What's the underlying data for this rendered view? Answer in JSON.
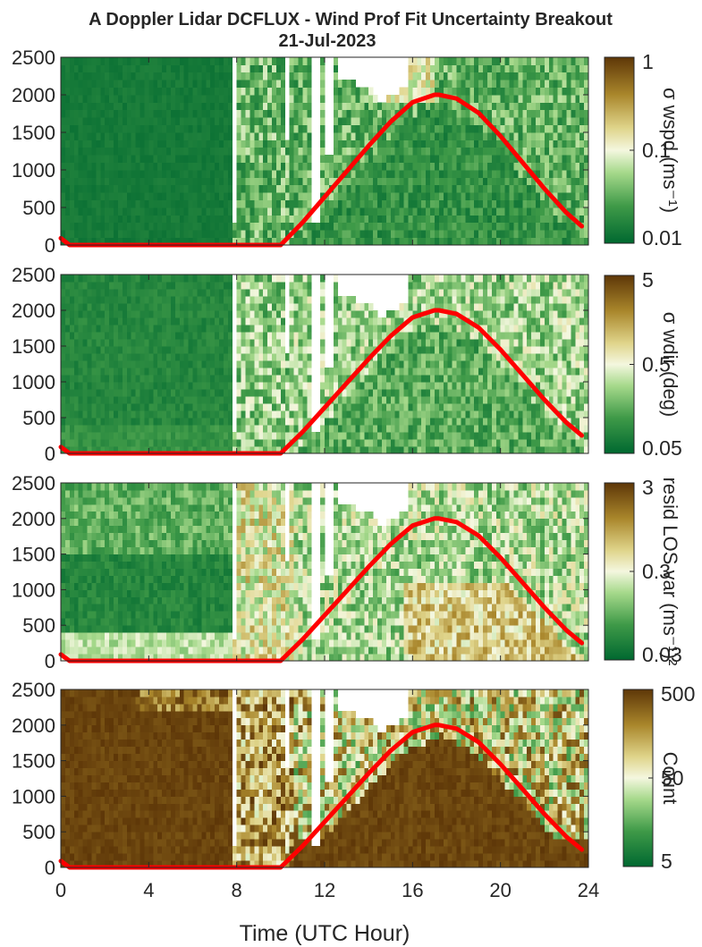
{
  "figure": {
    "title_line1": "A Doppler Lidar DCFLUX - Wind Prof Fit Uncertainty Breakout",
    "title_line2": "21-Jul-2023",
    "xlabel": "Time (UTC Hour)"
  },
  "colors": {
    "sza_line": "#ff0000",
    "colormap_low": "#006830",
    "colormap_mid": "#f4f7df",
    "colormap_high": "#5e3708",
    "no_data": "#ffffff"
  },
  "chart_data": [
    {
      "type": "heatmap",
      "panel": 1,
      "colorbar_label": "σ wspd (ms⁻¹)",
      "colorbar_ticks": [
        "1",
        "0.1",
        "0.01"
      ],
      "scale": "log",
      "yticks": [
        "0",
        "500",
        "1000",
        "1500",
        "2000",
        "2500"
      ],
      "xticks": [
        "0",
        "4",
        "8",
        "12",
        "16",
        "20",
        "24"
      ],
      "xlim": [
        0,
        24
      ],
      "ylim": [
        0,
        2500
      ],
      "series": [
        {
          "type": "line",
          "x": [
            0,
            0.4,
            10,
            11,
            12,
            13,
            14,
            15,
            16,
            17,
            17.2,
            18,
            19,
            20,
            21,
            22,
            23,
            23.7
          ],
          "y": [
            90,
            0,
            0,
            300,
            640,
            980,
            1320,
            1640,
            1900,
            2000,
            2000,
            1950,
            1760,
            1450,
            1100,
            750,
            430,
            250
          ]
        }
      ]
    },
    {
      "type": "heatmap",
      "panel": 2,
      "colorbar_label": "σ wdir (deg)",
      "colorbar_ticks": [
        "5",
        "0.5",
        "0.05"
      ],
      "scale": "log",
      "yticks": [
        "0",
        "500",
        "1000",
        "1500",
        "2000",
        "2500"
      ],
      "xticks": [
        "0",
        "4",
        "8",
        "12",
        "16",
        "20",
        "24"
      ],
      "xlim": [
        0,
        24
      ],
      "ylim": [
        0,
        2500
      ],
      "series": [
        {
          "type": "line",
          "x": [
            0,
            0.4,
            10,
            11,
            12,
            13,
            14,
            15,
            16,
            17,
            17.2,
            18,
            19,
            20,
            21,
            22,
            23,
            23.7
          ],
          "y": [
            90,
            0,
            0,
            300,
            640,
            980,
            1320,
            1640,
            1900,
            2000,
            2000,
            1950,
            1760,
            1450,
            1100,
            750,
            430,
            250
          ]
        }
      ]
    },
    {
      "type": "heatmap",
      "panel": 3,
      "colorbar_label": "resid LOS var (ms⁻¹)²",
      "colorbar_ticks": [
        "3",
        "0.3",
        "0.03"
      ],
      "scale": "log",
      "yticks": [
        "0",
        "500",
        "1000",
        "1500",
        "2000",
        "2500"
      ],
      "xticks": [
        "0",
        "4",
        "8",
        "12",
        "16",
        "20",
        "24"
      ],
      "xlim": [
        0,
        24
      ],
      "ylim": [
        0,
        2500
      ],
      "series": [
        {
          "type": "line",
          "x": [
            0,
            0.4,
            10,
            11,
            12,
            13,
            14,
            15,
            16,
            17,
            17.2,
            18,
            19,
            20,
            21,
            22,
            23,
            23.7
          ],
          "y": [
            90,
            0,
            0,
            300,
            640,
            980,
            1320,
            1640,
            1900,
            2000,
            2000,
            1950,
            1760,
            1450,
            1100,
            750,
            430,
            250
          ]
        }
      ]
    },
    {
      "type": "heatmap",
      "panel": 4,
      "colorbar_label": "Count",
      "colorbar_ticks": [
        "500",
        "50",
        "5"
      ],
      "scale": "log",
      "yticks": [
        "0",
        "500",
        "1000",
        "1500",
        "2000",
        "2500"
      ],
      "xticks": [
        "0",
        "4",
        "8",
        "12",
        "16",
        "20",
        "24"
      ],
      "xlim": [
        0,
        24
      ],
      "ylim": [
        0,
        2500
      ],
      "series": [
        {
          "type": "line",
          "x": [
            0,
            0.4,
            10,
            11,
            12,
            13,
            14,
            15,
            16,
            17,
            17.2,
            18,
            19,
            20,
            21,
            22,
            23,
            23.7
          ],
          "y": [
            90,
            0,
            0,
            300,
            640,
            980,
            1320,
            1640,
            1900,
            2000,
            2000,
            1950,
            1760,
            1450,
            1100,
            750,
            430,
            250
          ]
        }
      ]
    }
  ]
}
